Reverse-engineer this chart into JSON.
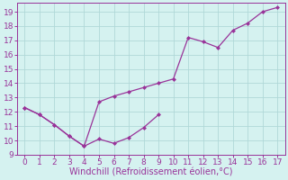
{
  "xlabel": "Windchill (Refroidissement éolien,°C)",
  "x_all": [
    0,
    1,
    2,
    3,
    4,
    5,
    6,
    7,
    8,
    9,
    10,
    11,
    12,
    13,
    14,
    15,
    16,
    17
  ],
  "line_wc": [
    12.3,
    11.8,
    11.1,
    10.3,
    9.6,
    10.1,
    9.8,
    10.2,
    10.9,
    11.8,
    null,
    null,
    null,
    null,
    null,
    null,
    null,
    null
  ],
  "line_temp": [
    12.3,
    11.8,
    11.1,
    10.3,
    9.6,
    12.7,
    13.1,
    13.4,
    13.7,
    14.0,
    14.3,
    17.2,
    16.9,
    16.5,
    17.7,
    18.2,
    19.0,
    19.3
  ],
  "line_color": "#993399",
  "bg_color": "#d5f2f0",
  "grid_color": "#b0d8d8",
  "marker": "D",
  "marker_size": 2.5,
  "linewidth": 0.9,
  "xlim": [
    -0.5,
    17.5
  ],
  "ylim": [
    9.0,
    19.6
  ],
  "yticks": [
    9,
    10,
    11,
    12,
    13,
    14,
    15,
    16,
    17,
    18,
    19
  ],
  "xticks": [
    0,
    1,
    2,
    3,
    4,
    5,
    6,
    7,
    8,
    9,
    10,
    11,
    12,
    13,
    14,
    15,
    16,
    17
  ],
  "tick_fontsize": 6.5,
  "xlabel_fontsize": 7.0,
  "figsize": [
    3.2,
    2.0
  ],
  "dpi": 100
}
